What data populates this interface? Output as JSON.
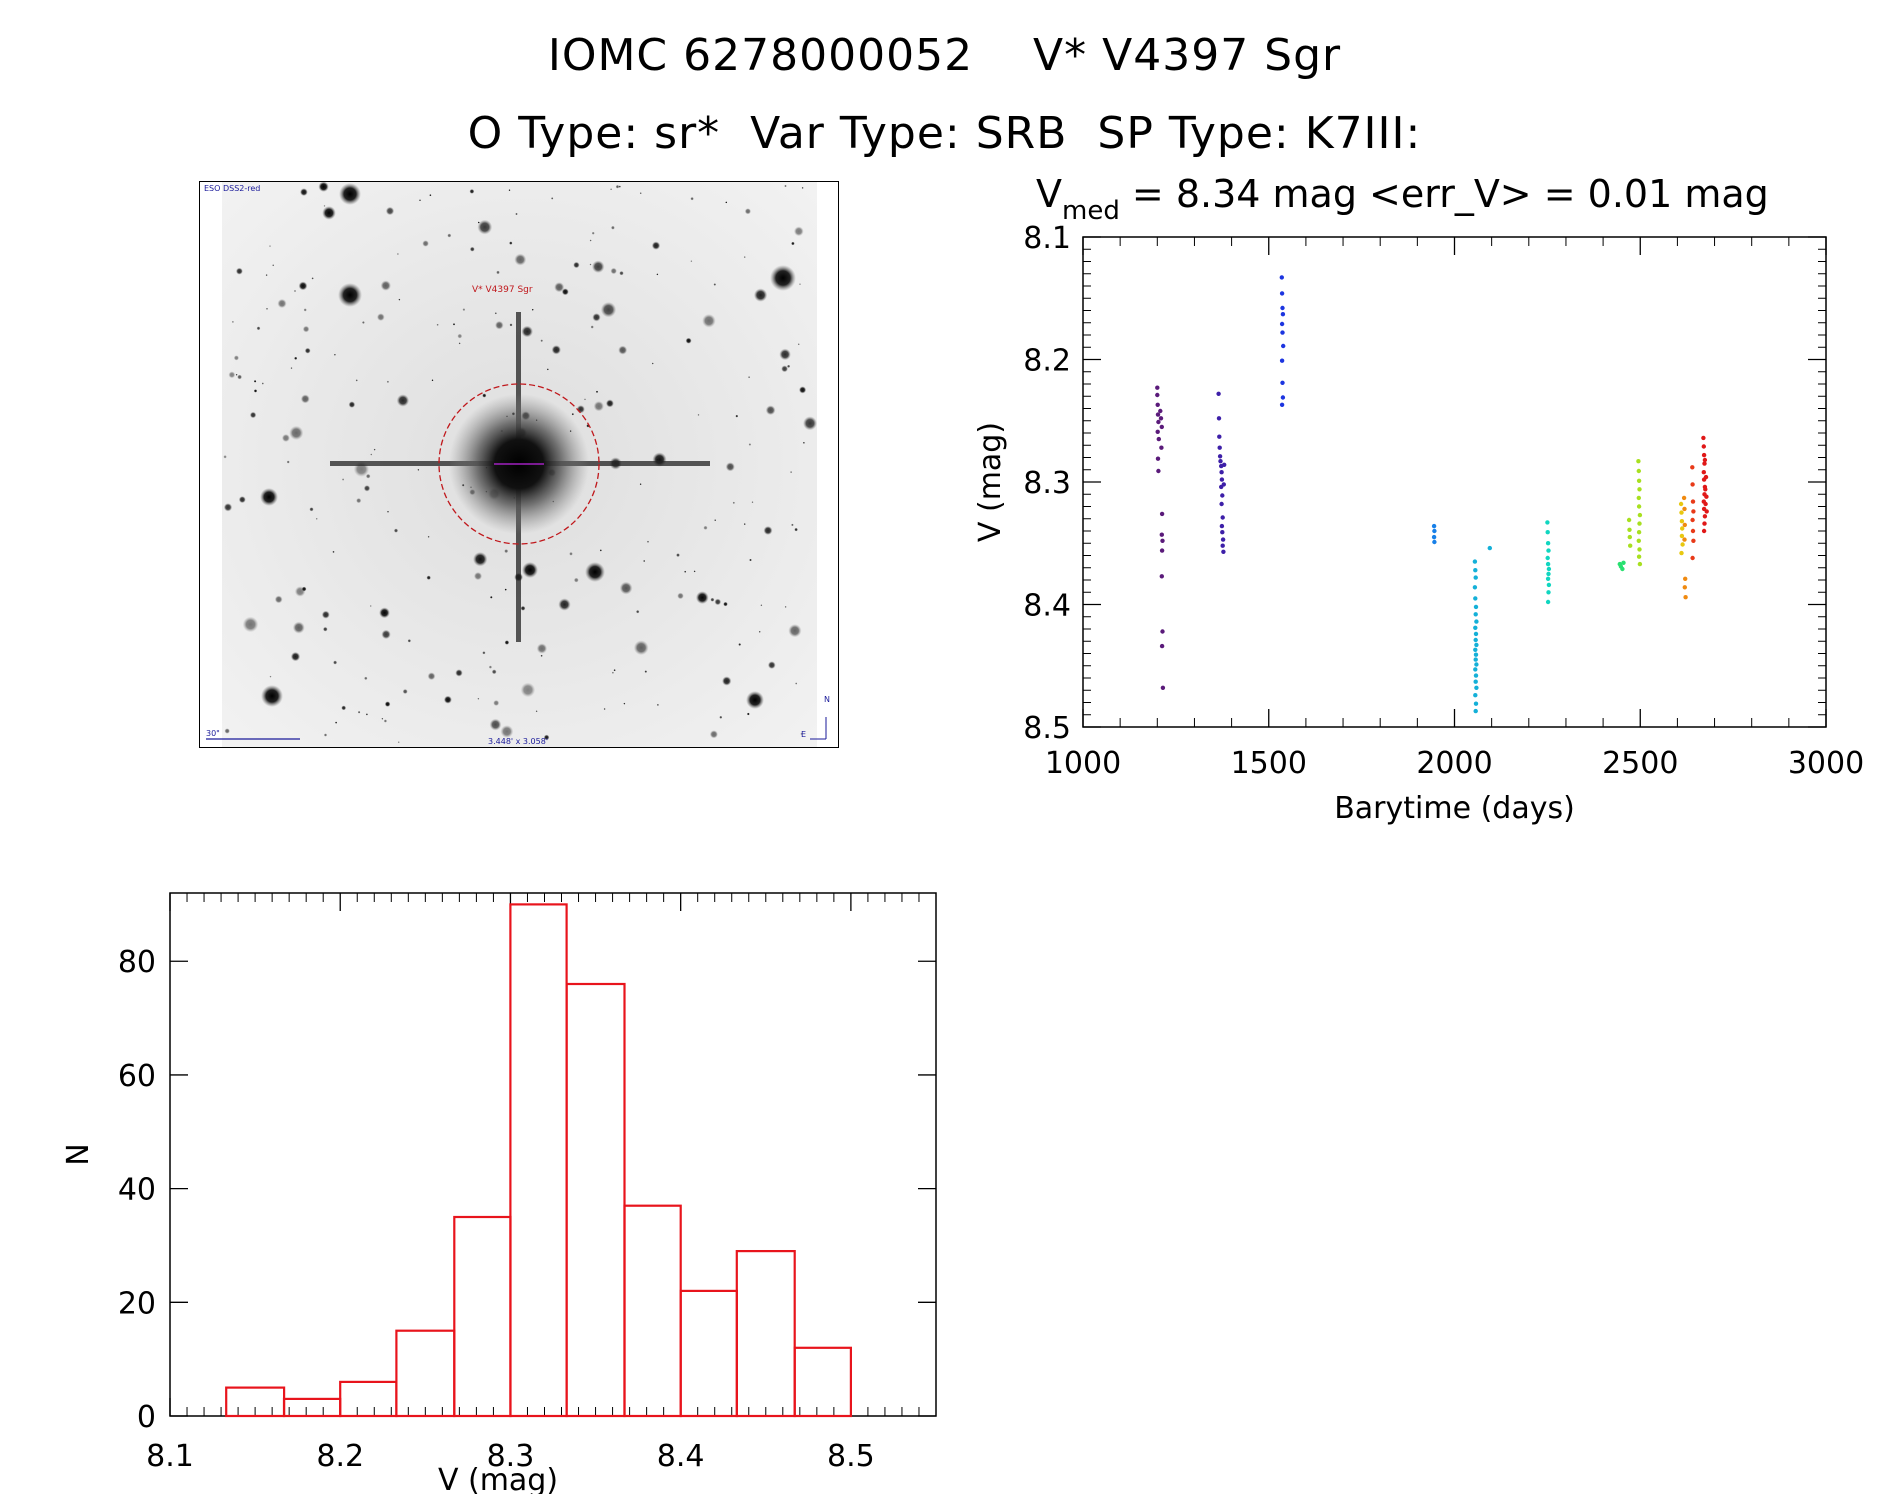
{
  "header": {
    "line1": "IOMC 6278000052    V* V4397 Sgr",
    "line2": "O Type: sr*  Var Type: SRB  SP Type: K7III:"
  },
  "finding_chart": {
    "survey_label": "ESO DSS2-red",
    "object_label": "V* V4397 Sgr",
    "scale_label": "30\"",
    "fov_label": "3.448' x 3.058'",
    "north_label": "N",
    "east_label": "E"
  },
  "lightcurve_stats": {
    "prefix": "V",
    "subscript": "med",
    "rest": " = 8.34 mag <err_V> = 0.01 mag"
  },
  "chart_data": [
    {
      "type": "scatter",
      "title": "V_med = 8.34 mag <err_V> = 0.01 mag",
      "xlabel": "Barytime (days)",
      "ylabel": "V (mag)",
      "xlim": [
        1000,
        3000
      ],
      "ylim": [
        8.5,
        8.1
      ],
      "xticks": [
        1000,
        1500,
        2000,
        2500,
        3000
      ],
      "yticks": [
        8.1,
        8.2,
        8.3,
        8.4,
        8.5
      ],
      "colormap": [
        "#5a1a7a",
        "#3d1fa8",
        "#1c35e0",
        "#1880e8",
        "#14b0d8",
        "#10d6c0",
        "#28e070",
        "#a8e020",
        "#e8c810",
        "#f08a10",
        "#e83a18",
        "#e01818"
      ],
      "groups": [
        {
          "color": "#5a1a7a",
          "points": [
            [
              1200,
              8.223
            ],
            [
              1200,
              8.229
            ],
            [
              1201,
              8.237
            ],
            [
              1202,
              8.245
            ],
            [
              1203,
              8.251
            ],
            [
              1201,
              8.259
            ],
            [
              1204,
              8.265
            ],
            [
              1202,
              8.281
            ],
            [
              1203,
              8.291
            ],
            [
              1208,
              8.242
            ],
            [
              1210,
              8.248
            ],
            [
              1212,
              8.255
            ],
            [
              1211,
              8.272
            ],
            [
              1213,
              8.326
            ],
            [
              1212,
              8.343
            ],
            [
              1214,
              8.348
            ],
            [
              1213,
              8.356
            ],
            [
              1212,
              8.377
            ],
            [
              1214,
              8.422
            ],
            [
              1213,
              8.434
            ],
            [
              1215,
              8.468
            ]
          ]
        },
        {
          "color": "#3d1fa8",
          "points": [
            [
              1365,
              8.228
            ],
            [
              1366,
              8.248
            ],
            [
              1367,
              8.263
            ],
            [
              1368,
              8.272
            ],
            [
              1369,
              8.279
            ],
            [
              1370,
              8.283
            ],
            [
              1372,
              8.287
            ],
            [
              1373,
              8.292
            ],
            [
              1374,
              8.298
            ],
            [
              1372,
              8.304
            ],
            [
              1375,
              8.311
            ],
            [
              1373,
              8.318
            ],
            [
              1376,
              8.329
            ],
            [
              1374,
              8.336
            ],
            [
              1375,
              8.341
            ],
            [
              1377,
              8.347
            ],
            [
              1376,
              8.352
            ],
            [
              1378,
              8.357
            ],
            [
              1380,
              8.286
            ],
            [
              1379,
              8.302
            ]
          ]
        },
        {
          "color": "#1c35e0",
          "points": [
            [
              1535,
              8.133
            ],
            [
              1536,
              8.146
            ],
            [
              1537,
              8.158
            ],
            [
              1538,
              8.163
            ],
            [
              1536,
              8.171
            ],
            [
              1537,
              8.178
            ],
            [
              1539,
              8.189
            ],
            [
              1536,
              8.201
            ],
            [
              1537,
              8.219
            ],
            [
              1538,
              8.231
            ],
            [
              1536,
              8.237
            ]
          ]
        },
        {
          "color": "#1880e8",
          "points": [
            [
              1945,
              8.336
            ],
            [
              1946,
              8.34
            ],
            [
              1945,
              8.345
            ],
            [
              1946,
              8.349
            ]
          ]
        },
        {
          "color": "#14b0d8",
          "points": [
            [
              2055,
              8.365
            ],
            [
              2056,
              8.372
            ],
            [
              2057,
              8.378
            ],
            [
              2055,
              8.386
            ],
            [
              2056,
              8.395
            ],
            [
              2058,
              8.402
            ],
            [
              2057,
              8.408
            ],
            [
              2059,
              8.414
            ],
            [
              2056,
              8.419
            ],
            [
              2058,
              8.424
            ],
            [
              2057,
              8.429
            ],
            [
              2059,
              8.433
            ],
            [
              2056,
              8.437
            ],
            [
              2058,
              8.441
            ],
            [
              2057,
              8.445
            ],
            [
              2059,
              8.449
            ],
            [
              2056,
              8.453
            ],
            [
              2058,
              8.458
            ],
            [
              2057,
              8.463
            ],
            [
              2059,
              8.468
            ],
            [
              2056,
              8.474
            ],
            [
              2058,
              8.481
            ],
            [
              2057,
              8.487
            ],
            [
              2095,
              8.354
            ]
          ]
        },
        {
          "color": "#10d6c0",
          "points": [
            [
              2250,
              8.333
            ],
            [
              2251,
              8.341
            ],
            [
              2252,
              8.35
            ],
            [
              2253,
              8.356
            ],
            [
              2251,
              8.362
            ],
            [
              2252,
              8.367
            ],
            [
              2254,
              8.371
            ],
            [
              2253,
              8.375
            ],
            [
              2252,
              8.379
            ],
            [
              2254,
              8.384
            ],
            [
              2253,
              8.39
            ],
            [
              2252,
              8.398
            ]
          ]
        },
        {
          "color": "#28e070",
          "points": [
            [
              2445,
              8.367
            ],
            [
              2448,
              8.369
            ],
            [
              2452,
              8.371
            ],
            [
              2455,
              8.366
            ]
          ]
        },
        {
          "color": "#a8e020",
          "points": [
            [
              2470,
              8.331
            ],
            [
              2471,
              8.339
            ],
            [
              2472,
              8.345
            ],
            [
              2473,
              8.352
            ],
            [
              2495,
              8.283
            ],
            [
              2496,
              8.291
            ],
            [
              2497,
              8.299
            ],
            [
              2498,
              8.306
            ],
            [
              2496,
              8.313
            ],
            [
              2497,
              8.32
            ],
            [
              2499,
              8.327
            ],
            [
              2498,
              8.334
            ],
            [
              2497,
              8.341
            ],
            [
              2496,
              8.348
            ],
            [
              2498,
              8.355
            ],
            [
              2497,
              8.361
            ],
            [
              2499,
              8.367
            ]
          ]
        },
        {
          "color": "#e8c810",
          "points": [
            [
              2610,
              8.318
            ],
            [
              2611,
              8.325
            ],
            [
              2612,
              8.332
            ],
            [
              2613,
              8.338
            ],
            [
              2612,
              8.344
            ],
            [
              2614,
              8.351
            ],
            [
              2611,
              8.358
            ]
          ]
        },
        {
          "color": "#f08a10",
          "points": [
            [
              2618,
              8.313
            ],
            [
              2619,
              8.322
            ],
            [
              2620,
              8.335
            ],
            [
              2619,
              8.347
            ],
            [
              2621,
              8.379
            ],
            [
              2620,
              8.386
            ],
            [
              2622,
              8.394
            ]
          ]
        },
        {
          "color": "#e83a18",
          "points": [
            [
              2640,
              8.288
            ],
            [
              2641,
              8.302
            ],
            [
              2642,
              8.316
            ],
            [
              2643,
              8.324
            ],
            [
              2641,
              8.331
            ],
            [
              2642,
              8.34
            ],
            [
              2643,
              8.348
            ],
            [
              2641,
              8.362
            ]
          ]
        },
        {
          "color": "#e01818",
          "points": [
            [
              2670,
              8.264
            ],
            [
              2671,
              8.271
            ],
            [
              2672,
              8.278
            ],
            [
              2673,
              8.285
            ],
            [
              2671,
              8.292
            ],
            [
              2672,
              8.298
            ],
            [
              2674,
              8.304
            ],
            [
              2673,
              8.31
            ],
            [
              2671,
              8.316
            ],
            [
              2672,
              8.322
            ],
            [
              2674,
              8.328
            ],
            [
              2673,
              8.334
            ],
            [
              2672,
              8.34
            ],
            [
              2674,
              8.282
            ],
            [
              2675,
              8.306
            ],
            [
              2676,
              8.318
            ],
            [
              2677,
              8.296
            ],
            [
              2678,
              8.312
            ],
            [
              2679,
              8.324
            ]
          ]
        }
      ]
    },
    {
      "type": "bar",
      "subtype": "histogram",
      "xlabel": "V (mag)",
      "ylabel": "N",
      "xlim": [
        8.1,
        8.55
      ],
      "ylim": [
        0,
        92
      ],
      "xticks": [
        8.1,
        8.2,
        8.3,
        8.4,
        8.5
      ],
      "yticks": [
        0,
        20,
        40,
        60,
        80
      ],
      "bin_width": 0.0333,
      "bin_edges": [
        8.133,
        8.167,
        8.2,
        8.233,
        8.267,
        8.3,
        8.333,
        8.367,
        8.4,
        8.433,
        8.467,
        8.5
      ],
      "counts": [
        5,
        3,
        6,
        15,
        35,
        90,
        76,
        37,
        22,
        29,
        12
      ],
      "color": "#e8141c"
    }
  ]
}
